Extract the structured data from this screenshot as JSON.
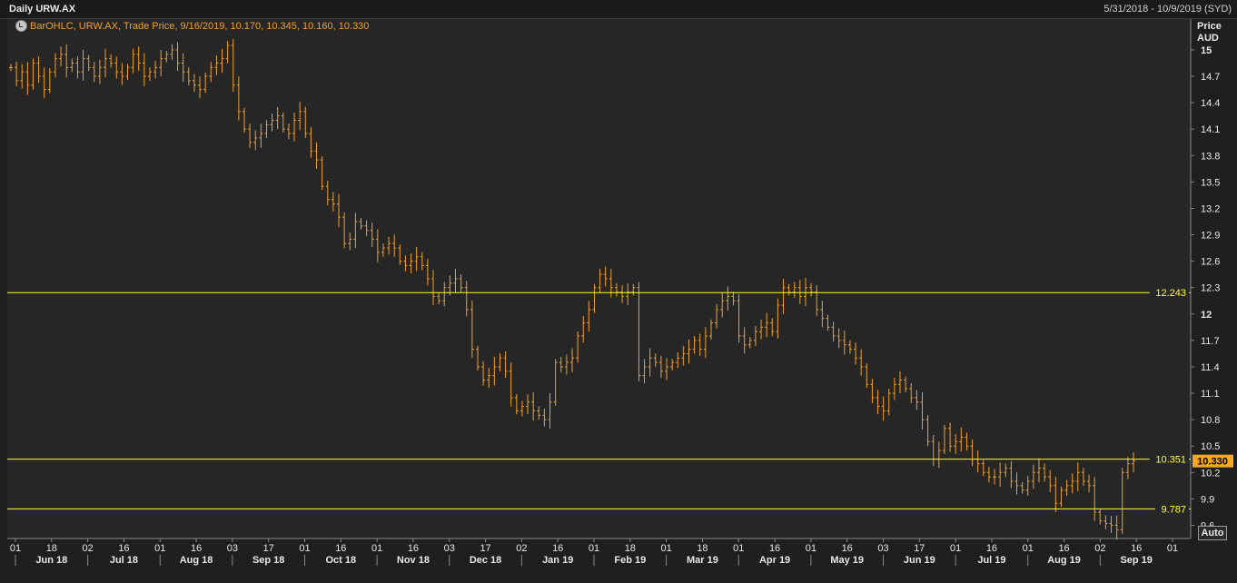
{
  "header": {
    "title": "Daily URW.AX",
    "date_range": "5/31/2018 - 10/9/2019 (SYD)"
  },
  "legend": {
    "text": "BarOHLC, URW.AX, Trade Price, 9/16/2019, 10.170, 10.345, 10.160, 10.330"
  },
  "y_axis_header": {
    "line1": "Price",
    "line2": "AUD"
  },
  "auto_button": "Auto",
  "colors": {
    "background": "#262626",
    "bars": "#f0a030",
    "reference_lines": "#ffff33",
    "current_price_tag": "#f5a623",
    "axis_text": "#e8e8e8"
  },
  "chart_data": {
    "type": "ohlc",
    "ylim": [
      9.45,
      15.35
    ],
    "y_ticks": [
      "15",
      "14.7",
      "14.4",
      "14.1",
      "13.8",
      "13.5",
      "13.2",
      "12.9",
      "12.6",
      "12.3",
      "12",
      "11.7",
      "11.4",
      "11.1",
      "10.8",
      "10.5",
      "10.2",
      "9.9",
      "9.6"
    ],
    "y_tick_values": [
      15,
      14.7,
      14.4,
      14.1,
      13.8,
      13.5,
      13.2,
      12.9,
      12.6,
      12.3,
      12,
      11.7,
      11.4,
      11.1,
      10.8,
      10.5,
      10.2,
      9.9,
      9.6
    ],
    "x_ticks_day": [
      "01",
      "18",
      "02",
      "16",
      "01",
      "16",
      "03",
      "17",
      "01",
      "16",
      "01",
      "16",
      "03",
      "17",
      "02",
      "16",
      "01",
      "18",
      "01",
      "18",
      "01",
      "16",
      "01",
      "16",
      "03",
      "17",
      "01",
      "16",
      "01",
      "16",
      "02",
      "16",
      "01"
    ],
    "x_ticks_month": [
      "Jun 18",
      "Jul 18",
      "Aug 18",
      "Sep 18",
      "Oct 18",
      "Nov 18",
      "Dec 18",
      "Jan 19",
      "Feb 19",
      "Mar 19",
      "Apr 19",
      "May 19",
      "Jun 19",
      "Jul 19",
      "Aug 19",
      "Sep 19"
    ],
    "reference_lines": [
      {
        "label": "12.243",
        "value": 12.243
      },
      {
        "label": "10.351",
        "value": 10.351
      },
      {
        "label": "9.787",
        "value": 9.787
      }
    ],
    "last_price": {
      "label": "10.330",
      "value": 10.33
    },
    "series": [
      {
        "values": [
          14.8,
          14.65,
          14.75,
          14.6,
          14.85,
          14.7,
          14.55,
          14.75,
          14.9,
          14.95,
          14.8,
          14.85,
          14.75,
          14.9,
          14.8,
          14.7,
          14.8,
          14.9,
          14.85,
          14.75,
          14.7,
          14.8,
          14.95,
          14.85,
          14.7,
          14.75,
          14.8,
          14.9,
          14.95,
          15.0,
          14.85,
          14.75,
          14.65,
          14.6,
          14.55,
          14.7,
          14.8,
          14.85,
          14.9,
          15.05,
          14.6,
          14.3,
          14.1,
          13.95,
          14.0,
          14.05,
          14.15,
          14.2,
          14.25,
          14.1,
          14.05,
          14.2,
          14.3,
          14.05,
          13.85,
          13.75,
          13.45,
          13.3,
          13.25,
          13.1,
          12.8,
          12.85,
          13.05,
          13.0,
          12.95,
          12.85,
          12.7,
          12.75,
          12.8,
          12.75,
          12.6,
          12.55,
          12.6,
          12.65,
          12.55,
          12.4,
          12.2,
          12.15,
          12.3,
          12.35,
          12.4,
          12.3,
          12.05,
          11.6,
          11.4,
          11.25,
          11.3,
          11.4,
          11.5,
          11.35,
          11.05,
          10.9,
          10.95,
          11.0,
          10.9,
          10.85,
          10.8,
          11.0,
          11.45,
          11.4,
          11.45,
          11.5,
          11.75,
          11.9,
          12.05,
          12.3,
          12.45,
          12.4,
          12.3,
          12.25,
          12.2,
          12.25,
          12.3,
          11.3,
          11.4,
          11.5,
          11.45,
          11.35,
          11.4,
          11.45,
          11.5,
          11.55,
          11.6,
          11.7,
          11.6,
          11.75,
          11.9,
          12.05,
          12.15,
          12.2,
          12.15,
          11.75,
          11.65,
          11.7,
          11.8,
          11.85,
          11.9,
          11.8,
          12.1,
          12.3,
          12.25,
          12.3,
          12.2,
          12.3,
          12.25,
          12.05,
          11.95,
          11.85,
          11.75,
          11.7,
          11.65,
          11.6,
          11.5,
          11.4,
          11.2,
          11.05,
          10.95,
          10.9,
          11.1,
          11.2,
          11.25,
          11.15,
          11.05,
          11.0,
          10.8,
          10.55,
          10.35,
          10.45,
          10.7,
          10.5,
          10.55,
          10.6,
          10.5,
          10.35,
          10.3,
          10.2,
          10.15,
          10.15,
          10.2,
          10.25,
          10.1,
          10.05,
          10.0,
          10.1,
          10.2,
          10.25,
          10.15,
          10.05,
          9.85,
          10.0,
          10.05,
          10.1,
          10.2,
          10.1,
          10.05,
          9.75,
          9.65,
          9.62,
          9.6,
          9.55,
          10.2,
          10.3,
          10.33
        ]
      }
    ]
  }
}
